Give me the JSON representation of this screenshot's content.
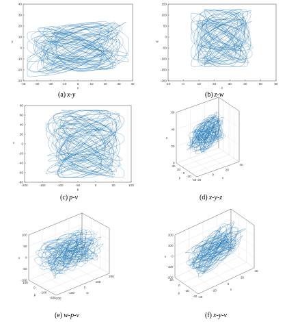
{
  "figure": {
    "panels": [
      {
        "label": "(a)",
        "vars": "x-y"
      },
      {
        "label": "(b)",
        "vars": "z-w"
      },
      {
        "label": "(c)",
        "vars": "p-v"
      },
      {
        "label": "(d)",
        "vars": "x-y-z"
      },
      {
        "label": "(e)",
        "vars": "w-p-v"
      },
      {
        "label": "(f)",
        "vars": "x-y-v"
      }
    ],
    "line_color": "#1f77b4"
  },
  "chart_data": [
    {
      "type": "line",
      "dimensions": 2,
      "xlabel": "x",
      "ylabel": "y",
      "xlim": [
        -40,
        40
      ],
      "ylim": [
        -30,
        40
      ],
      "xticks": [
        "-40",
        "-30",
        "-20",
        "-10",
        "0",
        "10",
        "20",
        "30",
        "40"
      ],
      "yticks": [
        "-30",
        "-20",
        "-10",
        "0",
        "10",
        "20",
        "30",
        "40"
      ],
      "grid": false,
      "attractor": {
        "cx": 0,
        "cy": 0,
        "rx": 37,
        "ry": 22,
        "skew": 0.35
      }
    },
    {
      "type": "line",
      "dimensions": 2,
      "xlabel": "z",
      "ylabel": "w",
      "xlim": [
        -10,
        60
      ],
      "ylim": [
        -200,
        150
      ],
      "xticks": [
        "-10",
        "0",
        "10",
        "20",
        "30",
        "40",
        "50",
        "60"
      ],
      "yticks": [
        "-200",
        "-150",
        "-100",
        "-50",
        "0",
        "50",
        "100",
        "150"
      ],
      "grid": false,
      "attractor": {
        "cx": 25,
        "cy": -5,
        "rx": 20,
        "ry": 130,
        "skew": 0
      }
    },
    {
      "type": "line",
      "dimensions": 2,
      "xlabel": "p",
      "ylabel": "v",
      "xlim": [
        -200,
        100
      ],
      "ylim": [
        -80,
        80
      ],
      "xticks": [
        "-200",
        "-150",
        "-100",
        "-50",
        "0",
        "50",
        "100"
      ],
      "yticks": [
        "-80",
        "-60",
        "-40",
        "-20",
        "0",
        "20",
        "40",
        "60",
        "80"
      ],
      "grid": false,
      "attractor": {
        "cx": -30,
        "cy": 0,
        "rx": 110,
        "ry": 70,
        "skew": 0
      }
    },
    {
      "type": "line",
      "dimensions": 3,
      "xlabel": "x",
      "ylabel": "y",
      "zlabel": "z",
      "xlim": [
        -40,
        40
      ],
      "ylim": [
        -40,
        40
      ],
      "zlim": [
        0,
        60
      ],
      "xticks": [
        "-20",
        "0",
        "20",
        "40"
      ],
      "yticks": [
        "-40",
        "-20",
        "0",
        "20",
        "40"
      ],
      "zticks": [
        "0",
        "20",
        "40",
        "60"
      ],
      "grid": true
    },
    {
      "type": "line",
      "dimensions": 3,
      "xlabel": "w",
      "ylabel": "p",
      "zlabel": "v",
      "xlim": [
        -200,
        200
      ],
      "ylim": [
        -200,
        200
      ],
      "zlim": [
        -100,
        100
      ],
      "xticks": [
        "-200",
        "-100",
        "0",
        "100",
        "200"
      ],
      "yticks": [
        "-200",
        "-100",
        "0",
        "100"
      ],
      "zticks": [
        "-100",
        "-50",
        "0",
        "50",
        "100"
      ],
      "grid": true
    },
    {
      "type": "line",
      "dimensions": 3,
      "xlabel": "x",
      "ylabel": "y",
      "zlabel": "v",
      "xlim": [
        -40,
        40
      ],
      "ylim": [
        -40,
        40
      ],
      "zlim": [
        -200,
        200
      ],
      "xticks": [
        "-40",
        "-20",
        "0",
        "20",
        "40"
      ],
      "yticks": [
        "-40",
        "-20",
        "0",
        "20"
      ],
      "zticks": [
        "-200",
        "-100",
        "0",
        "100",
        "200"
      ],
      "grid": true
    }
  ]
}
